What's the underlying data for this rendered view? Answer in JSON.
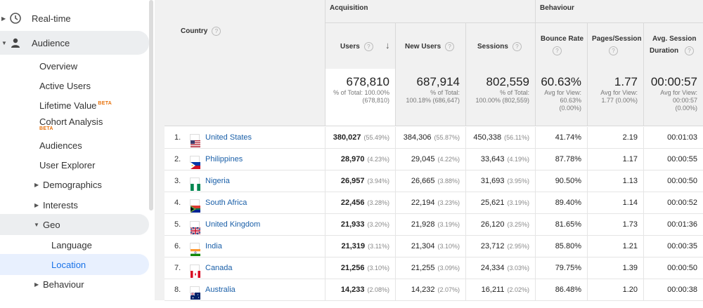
{
  "sidebar": {
    "items": [
      {
        "label": "Real-time",
        "icon": "clock-icon"
      },
      {
        "label": "Audience",
        "icon": "person-icon"
      },
      {
        "label": "Overview"
      },
      {
        "label": "Active Users"
      },
      {
        "label": "Lifetime Value",
        "badge": "BETA"
      },
      {
        "label": "Cohort Analysis",
        "badge": "BETA"
      },
      {
        "label": "Audiences"
      },
      {
        "label": "User Explorer"
      },
      {
        "label": "Demographics"
      },
      {
        "label": "Interests"
      },
      {
        "label": "Geo"
      },
      {
        "label": "Language"
      },
      {
        "label": "Location"
      },
      {
        "label": "Behaviour"
      }
    ]
  },
  "table": {
    "groups": {
      "acquisition": "Acquisition",
      "behaviour": "Behaviour"
    },
    "headers": {
      "country": "Country",
      "users": "Users",
      "new_users": "New Users",
      "sessions": "Sessions",
      "bounce_rate": "Bounce Rate",
      "pages_session": "Pages/Session",
      "avg_session_1": "Avg. Session",
      "avg_session_2": "Duration",
      "help": "?"
    },
    "totals": {
      "users": {
        "value": "678,810",
        "line1": "% of Total: 100.00%",
        "line2": "(678,810)"
      },
      "new_users": {
        "value": "687,914",
        "line1": "% of Total:",
        "line2": "100.18% (686,647)"
      },
      "sessions": {
        "value": "802,559",
        "line1": "% of Total:",
        "line2": "100.00% (802,559)"
      },
      "bounce_rate": {
        "value": "60.63%",
        "line1": "Avg for View:",
        "line2": "60.63%",
        "line3": "(0.00%)"
      },
      "pages_session": {
        "value": "1.77",
        "line1": "Avg for View:",
        "line2": "1.77 (0.00%)"
      },
      "avg_duration": {
        "value": "00:00:57",
        "line1": "Avg for View:",
        "line2": "00:00:57",
        "line3": "(0.00%)"
      }
    },
    "rows": [
      {
        "idx": "1.",
        "country": "United States",
        "flag": "us",
        "users": "380,027",
        "users_pct": "(55.49%)",
        "new_users": "384,306",
        "new_users_pct": "(55.87%)",
        "sessions": "450,338",
        "sessions_pct": "(56.11%)",
        "bounce": "41.74%",
        "pages": "2.19",
        "duration": "00:01:03"
      },
      {
        "idx": "2.",
        "country": "Philippines",
        "flag": "ph",
        "users": "28,970",
        "users_pct": "(4.23%)",
        "new_users": "29,045",
        "new_users_pct": "(4.22%)",
        "sessions": "33,643",
        "sessions_pct": "(4.19%)",
        "bounce": "87.78%",
        "pages": "1.17",
        "duration": "00:00:55"
      },
      {
        "idx": "3.",
        "country": "Nigeria",
        "flag": "ng",
        "users": "26,957",
        "users_pct": "(3.94%)",
        "new_users": "26,665",
        "new_users_pct": "(3.88%)",
        "sessions": "31,693",
        "sessions_pct": "(3.95%)",
        "bounce": "90.50%",
        "pages": "1.13",
        "duration": "00:00:50"
      },
      {
        "idx": "4.",
        "country": "South Africa",
        "flag": "za",
        "users": "22,456",
        "users_pct": "(3.28%)",
        "new_users": "22,194",
        "new_users_pct": "(3.23%)",
        "sessions": "25,621",
        "sessions_pct": "(3.19%)",
        "bounce": "89.40%",
        "pages": "1.14",
        "duration": "00:00:52"
      },
      {
        "idx": "5.",
        "country": "United Kingdom",
        "flag": "gb",
        "users": "21,933",
        "users_pct": "(3.20%)",
        "new_users": "21,928",
        "new_users_pct": "(3.19%)",
        "sessions": "26,120",
        "sessions_pct": "(3.25%)",
        "bounce": "81.65%",
        "pages": "1.73",
        "duration": "00:01:36"
      },
      {
        "idx": "6.",
        "country": "India",
        "flag": "in",
        "users": "21,319",
        "users_pct": "(3.11%)",
        "new_users": "21,304",
        "new_users_pct": "(3.10%)",
        "sessions": "23,712",
        "sessions_pct": "(2.95%)",
        "bounce": "85.80%",
        "pages": "1.21",
        "duration": "00:00:35"
      },
      {
        "idx": "7.",
        "country": "Canada",
        "flag": "ca",
        "users": "21,256",
        "users_pct": "(3.10%)",
        "new_users": "21,255",
        "new_users_pct": "(3.09%)",
        "sessions": "24,334",
        "sessions_pct": "(3.03%)",
        "bounce": "79.75%",
        "pages": "1.39",
        "duration": "00:00:50"
      },
      {
        "idx": "8.",
        "country": "Australia",
        "flag": "au",
        "users": "14,233",
        "users_pct": "(2.08%)",
        "new_users": "14,232",
        "new_users_pct": "(2.07%)",
        "sessions": "16,211",
        "sessions_pct": "(2.02%)",
        "bounce": "86.48%",
        "pages": "1.20",
        "duration": "00:00:38"
      }
    ]
  },
  "colors": {
    "link": "#1a5fa8",
    "active": "#1a73e8",
    "beta": "#e8710a"
  }
}
